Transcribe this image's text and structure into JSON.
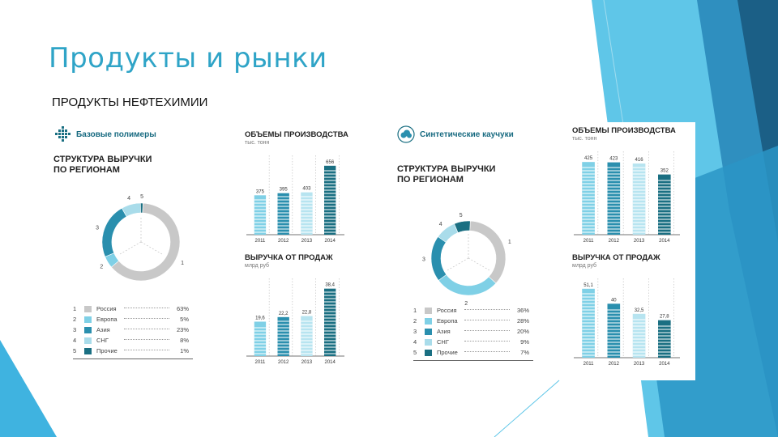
{
  "slide": {
    "title": "Продукты и рынки",
    "subtitle": "ПРОДУКТЫ НЕФТЕХИМИИ"
  },
  "colors": {
    "accent": "#2fa4c7",
    "teal_dark": "#1a6f82",
    "teal_mid": "#2a8fae",
    "teal_light": "#7fd0e6",
    "gray": "#c8c8c8",
    "deco_dark": "#1b6e95",
    "deco_light": "#6fd0ee"
  },
  "panels": {
    "polymers": {
      "brand": "Базовые полимеры",
      "logo_icon": "grid-logo-icon",
      "structure_title_1": "СТРУКТУРА ВЫРУЧКИ",
      "structure_title_2": "ПО РЕГИОНАМ",
      "donut_labels": [
        "1",
        "2",
        "3",
        "4",
        "5"
      ],
      "legend": [
        {
          "num": "1",
          "name": "Россия",
          "value": "63%"
        },
        {
          "num": "2",
          "name": "Европа",
          "value": "5%"
        },
        {
          "num": "3",
          "name": "Азия",
          "value": "23%"
        },
        {
          "num": "4",
          "name": "СНГ",
          "value": "8%"
        },
        {
          "num": "5",
          "name": "Прочие",
          "value": "1%"
        }
      ],
      "production": {
        "title": "ОБЪЕМЫ ПРОИЗВОДСТВА",
        "unit": "тыс. тонн",
        "years": [
          "2011",
          "2012",
          "2013",
          "2014"
        ],
        "labels": [
          "375",
          "395",
          "403",
          "656"
        ]
      },
      "sales": {
        "title": "ВЫРУЧКА ОТ ПРОДАЖ",
        "unit": "млрд руб",
        "years": [
          "2011",
          "2012",
          "2013",
          "2014"
        ],
        "labels": [
          "19,6",
          "22,2",
          "22,8",
          "38,4"
        ]
      }
    },
    "rubbers": {
      "brand": "Синтетические каучуки",
      "logo_icon": "cloud-logo-icon",
      "structure_title_1": "СТРУКТУРА ВЫРУЧКИ",
      "structure_title_2": "ПО РЕГИОНАМ",
      "donut_labels": [
        "1",
        "2",
        "3",
        "4",
        "5"
      ],
      "legend": [
        {
          "num": "1",
          "name": "Россия",
          "value": "36%"
        },
        {
          "num": "2",
          "name": "Европа",
          "value": "28%"
        },
        {
          "num": "3",
          "name": "Азия",
          "value": "20%"
        },
        {
          "num": "4",
          "name": "СНГ",
          "value": "9%"
        },
        {
          "num": "5",
          "name": "Прочие",
          "value": "7%"
        }
      ],
      "production": {
        "title": "ОБЪЕМЫ ПРОИЗВОДСТВА",
        "unit": "тыс. тонн",
        "years": [
          "2011",
          "2012",
          "2013",
          "2014"
        ],
        "labels": [
          "425",
          "423",
          "416",
          "352"
        ]
      },
      "sales": {
        "title": "ВЫРУЧКА ОТ ПРОДАЖ",
        "unit": "млрд руб",
        "years": [
          "2011",
          "2012",
          "2013",
          "2014"
        ],
        "labels": [
          "51,1",
          "40",
          "32,5",
          "27,8"
        ]
      }
    }
  },
  "chart_data": [
    {
      "type": "pie",
      "title": "СТРУКТУРА ВЫРУЧКИ ПО РЕГИОНАМ",
      "categories": [
        "Россия",
        "Европа",
        "Азия",
        "СНГ",
        "Прочие"
      ],
      "values": [
        63,
        5,
        23,
        8,
        1
      ]
    },
    {
      "type": "bar",
      "title": "ОБЪЕМЫ ПРОИЗВОДСТВА",
      "ylabel": "тыс. тонн",
      "categories": [
        "2011",
        "2012",
        "2013",
        "2014"
      ],
      "values": [
        375,
        395,
        403,
        656
      ]
    },
    {
      "type": "bar",
      "title": "ВЫРУЧКА ОТ ПРОДАЖ",
      "ylabel": "млрд руб",
      "categories": [
        "2011",
        "2012",
        "2013",
        "2014"
      ],
      "values": [
        19.6,
        22.2,
        22.8,
        38.4
      ]
    },
    {
      "type": "pie",
      "title": "СТРУКТУРА ВЫРУЧКИ ПО РЕГИОНАМ",
      "categories": [
        "Россия",
        "Европа",
        "Азия",
        "СНГ",
        "Прочие"
      ],
      "values": [
        36,
        28,
        20,
        9,
        7
      ]
    },
    {
      "type": "bar",
      "title": "ОБЪЕМЫ ПРОИЗВОДСТВА",
      "ylabel": "тыс. тонн",
      "categories": [
        "2011",
        "2012",
        "2013",
        "2014"
      ],
      "values": [
        425,
        423,
        416,
        352
      ]
    },
    {
      "type": "bar",
      "title": "ВЫРУЧКА ОТ ПРОДАЖ",
      "ylabel": "млрд руб",
      "categories": [
        "2011",
        "2012",
        "2013",
        "2014"
      ],
      "values": [
        51.1,
        40,
        32.5,
        27.8
      ]
    }
  ]
}
